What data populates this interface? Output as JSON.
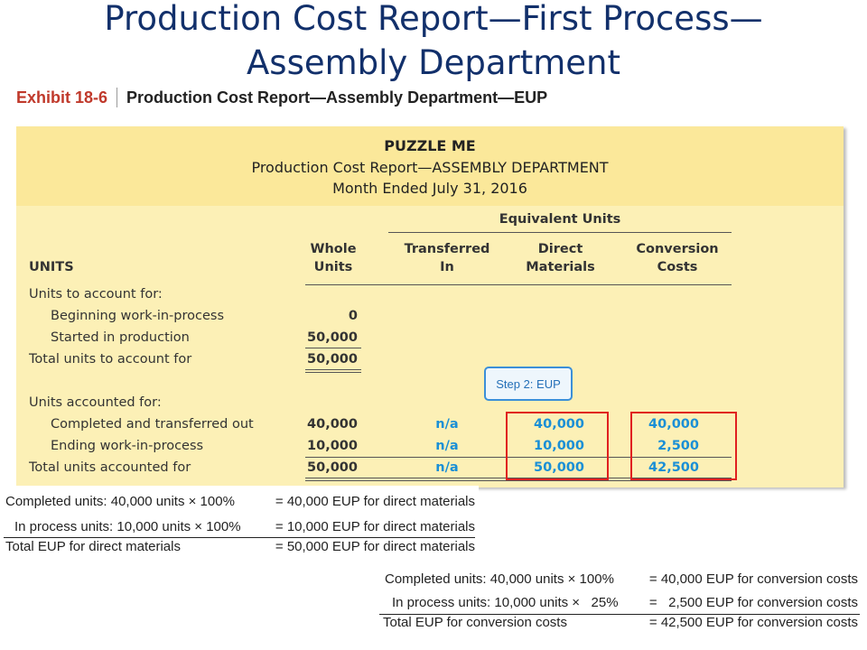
{
  "slide": {
    "title_line1": "Production Cost Report—First Process—",
    "title_line2": "Assembly Department"
  },
  "exhibit": {
    "number": "Exhibit 18-6",
    "title": "Production Cost Report—Assembly Department—EUP"
  },
  "report": {
    "company": "PUZZLE ME",
    "report_name": "Production Cost Report—ASSEMBLY DEPARTMENT",
    "period": "Month Ended July 31, 2016",
    "eu_header": "Equivalent Units",
    "columns": {
      "units_label": "UNITS",
      "whole_1": "Whole",
      "whole_2": "Units",
      "transferred_1": "Transferred",
      "transferred_2": "In",
      "dm_1": "Direct",
      "dm_2": "Materials",
      "cc_1": "Conversion",
      "cc_2": "Costs"
    },
    "to_account": {
      "heading": "Units to account for:",
      "rows": [
        {
          "label": "Beginning work-in-process",
          "whole": "0"
        },
        {
          "label": "Started in production",
          "whole": "50,000"
        }
      ],
      "total_label": "Total units to account for",
      "total_whole": "50,000"
    },
    "step_badge": "Step 2: EUP",
    "accounted": {
      "heading": "Units accounted for:",
      "rows": [
        {
          "label": "Completed and transferred out",
          "whole": "40,000",
          "ti": "n/a",
          "dm": "40,000",
          "cc": "40,000"
        },
        {
          "label": "Ending work-in-process",
          "whole": "10,000",
          "ti": "n/a",
          "dm": "10,000",
          "cc": "2,500"
        }
      ],
      "total": {
        "label": "Total units accounted for",
        "whole": "50,000",
        "ti": "n/a",
        "dm": "50,000",
        "cc": "42,500"
      }
    }
  },
  "dm_calc": {
    "rows": [
      {
        "left": "Completed units: 40,000 units × 100%",
        "right": "= 40,000 EUP for direct materials"
      },
      {
        "left": "In process units: 10,000 units × 100%",
        "right": "= 10,000 EUP for direct materials"
      }
    ],
    "total": {
      "left": "Total EUP for direct materials",
      "right": "= 50,000 EUP for direct materials"
    }
  },
  "cc_calc": {
    "rows": [
      {
        "left": "Completed units: 40,000 units × 100%",
        "right": "= 40,000 EUP for conversion costs"
      },
      {
        "left": "In process units: 10,000 units ×   25%",
        "right": "=   2,500 EUP for conversion costs"
      }
    ],
    "total": {
      "left": "Total EUP for conversion costs",
      "right": "= 42,500 EUP for conversion costs"
    }
  },
  "colors": {
    "title": "#12306b",
    "exhibit_red": "#c0392b",
    "panel": "#fcf0b6",
    "panel_header": "#fbe89a",
    "highlight_blue": "#1a8fd6",
    "box_red": "#e02020"
  }
}
